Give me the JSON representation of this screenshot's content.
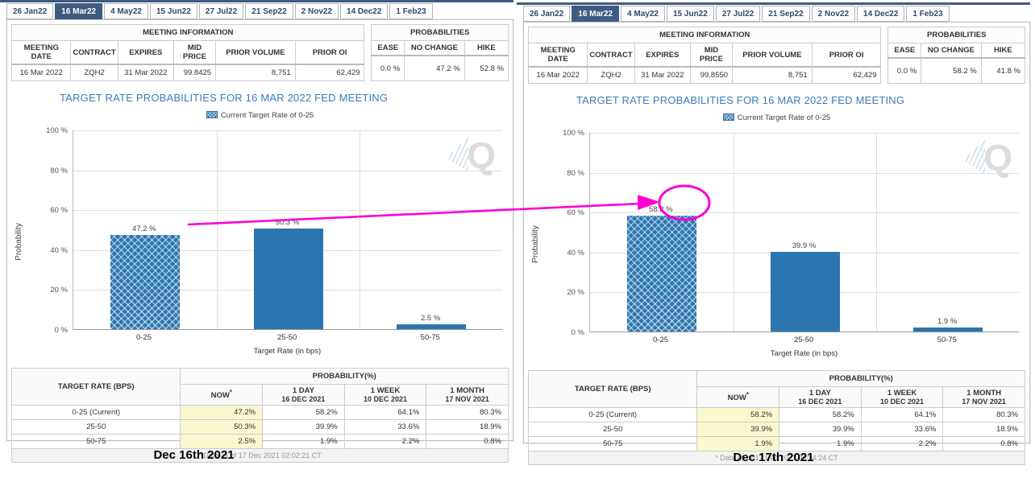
{
  "colors": {
    "navy": "#3e5c80",
    "title_blue": "#3d7ab8",
    "bar_blue": "#2b76b0",
    "magenta": "#ff00d4",
    "now_highlight": "#fbf7cf"
  },
  "tabs": {
    "items": [
      "26 Jan22",
      "16 Mar22",
      "4 May22",
      "15 Jun22",
      "27 Jul22",
      "21 Sep22",
      "2 Nov22",
      "14 Dec22",
      "1 Feb23"
    ],
    "selected": "16 Mar22"
  },
  "panels": [
    {
      "caption": "Dec 16th 2021",
      "meeting_info": {
        "title": "MEETING INFORMATION",
        "headers": [
          "MEETING DATE",
          "CONTRACT",
          "EXPIRES",
          "MID PRICE",
          "PRIOR VOLUME",
          "PRIOR OI"
        ],
        "values": [
          "16 Mar 2022",
          "ZQH2",
          "31 Mar 2022",
          "99.8425",
          "8,751",
          "62,429"
        ]
      },
      "probabilities": {
        "title": "PROBABILITIES",
        "headers": [
          "EASE",
          "NO CHANGE",
          "HIKE"
        ],
        "values": [
          "0.0 %",
          "47.2 %",
          "52.8 %"
        ]
      },
      "chart": {
        "title": "TARGET RATE PROBABILITIES FOR 16 MAR 2022 FED MEETING",
        "legend": "Current Target Rate of 0-25",
        "watermark": "Q",
        "ylabel": "Probability",
        "xlabel": "Target Rate (in bps)",
        "yticks": [
          "100 %",
          "80 %",
          "60 %",
          "40 %",
          "20 %",
          "0 %"
        ],
        "bars": [
          {
            "category": "0-25",
            "value": 47.2,
            "label": "47.2 %",
            "hatched": true
          },
          {
            "category": "25-50",
            "value": 50.3,
            "label": "50.3 %",
            "hatched": false
          },
          {
            "category": "50-75",
            "value": 2.5,
            "label": "2.5 %",
            "hatched": false
          }
        ]
      },
      "table": {
        "corner": "TARGET RATE (BPS)",
        "group": "PROBABILITY(%)",
        "cols": [
          {
            "l1": "NOW",
            "sup": "*"
          },
          {
            "l1": "1 DAY",
            "l2": "16 DEC 2021"
          },
          {
            "l1": "1 WEEK",
            "l2": "10 DEC 2021"
          },
          {
            "l1": "1 MONTH",
            "l2": "17 NOV 2021"
          }
        ],
        "rows": [
          [
            "0-25 (Current)",
            "47.2%",
            "58.2%",
            "64.1%",
            "80.3%"
          ],
          [
            "25-50",
            "50.3%",
            "39.9%",
            "33.6%",
            "18.9%"
          ],
          [
            "50-75",
            "2.5%",
            "1.9%",
            "2.2%",
            "0.8%"
          ]
        ],
        "footnote": "* Data as of 17 Dec 2021 02:02:21 CT"
      }
    },
    {
      "caption": "Dec 17th 2021",
      "meeting_info": {
        "title": "MEETING INFORMATION",
        "headers": [
          "MEETING DATE",
          "CONTRACT",
          "EXPIRES",
          "MID PRICE",
          "PRIOR VOLUME",
          "PRIOR OI"
        ],
        "values": [
          "16 Mar 2022",
          "ZQH2",
          "31 Mar 2022",
          "99.8550",
          "8,751",
          "62,429"
        ]
      },
      "probabilities": {
        "title": "PROBABILITIES",
        "headers": [
          "EASE",
          "NO CHANGE",
          "HIKE"
        ],
        "values": [
          "0.0 %",
          "58.2 %",
          "41.8 %"
        ]
      },
      "chart": {
        "title": "TARGET RATE PROBABILITIES FOR 16 MAR 2022 FED MEETING",
        "legend": "Current Target Rate of 0-25",
        "watermark": "Q",
        "ylabel": "Probability",
        "xlabel": "Target Rate (in bps)",
        "yticks": [
          "100 %",
          "80 %",
          "60 %",
          "40 %",
          "20 %",
          "0 %"
        ],
        "bars": [
          {
            "category": "0-25",
            "value": 58.2,
            "label": "58.2 %",
            "hatched": true
          },
          {
            "category": "25-50",
            "value": 39.9,
            "label": "39.9 %",
            "hatched": false
          },
          {
            "category": "50-75",
            "value": 1.9,
            "label": "1.9 %",
            "hatched": false
          }
        ]
      },
      "table": {
        "corner": "TARGET RATE (BPS)",
        "group": "PROBABILITY(%)",
        "cols": [
          {
            "l1": "NOW",
            "sup": "*"
          },
          {
            "l1": "1 DAY",
            "l2": "16 DEC 2021"
          },
          {
            "l1": "1 WEEK",
            "l2": "10 DEC 2021"
          },
          {
            "l1": "1 MONTH",
            "l2": "17 NOV 2021"
          }
        ],
        "rows": [
          [
            "0-25 (Current)",
            "58.2%",
            "58.2%",
            "64.1%",
            "80.3%"
          ],
          [
            "25-50",
            "39.9%",
            "39.9%",
            "33.6%",
            "18.9%"
          ],
          [
            "50-75",
            "1.9%",
            "1.9%",
            "2.2%",
            "0.8%"
          ]
        ],
        "footnote": "* Data as of 17 Dec 2021 09:34:24 CT"
      }
    }
  ],
  "chart_data": [
    {
      "type": "bar",
      "title": "TARGET RATE PROBABILITIES FOR 16 MAR 2022 FED MEETING (Dec 16th 2021)",
      "categories": [
        "0-25",
        "25-50",
        "50-75"
      ],
      "values": [
        47.2,
        50.3,
        2.5
      ],
      "xlabel": "Target Rate (in bps)",
      "ylabel": "Probability",
      "ylim": [
        0,
        100
      ],
      "yticks": [
        0,
        20,
        40,
        60,
        80,
        100
      ],
      "legend": [
        "Current Target Rate of 0-25"
      ],
      "legend_position": "top",
      "grid": true
    },
    {
      "type": "bar",
      "title": "TARGET RATE PROBABILITIES FOR 16 MAR 2022 FED MEETING (Dec 17th 2021)",
      "categories": [
        "0-25",
        "25-50",
        "50-75"
      ],
      "values": [
        58.2,
        39.9,
        1.9
      ],
      "xlabel": "Target Rate (in bps)",
      "ylabel": "Probability",
      "ylim": [
        0,
        100
      ],
      "yticks": [
        0,
        20,
        40,
        60,
        80,
        100
      ],
      "legend": [
        "Current Target Rate of 0-25"
      ],
      "legend_position": "top",
      "grid": true,
      "annotation": "58.2 % bar circled, arrow drawn from 47.2 % label of Dec 16th chart"
    }
  ]
}
